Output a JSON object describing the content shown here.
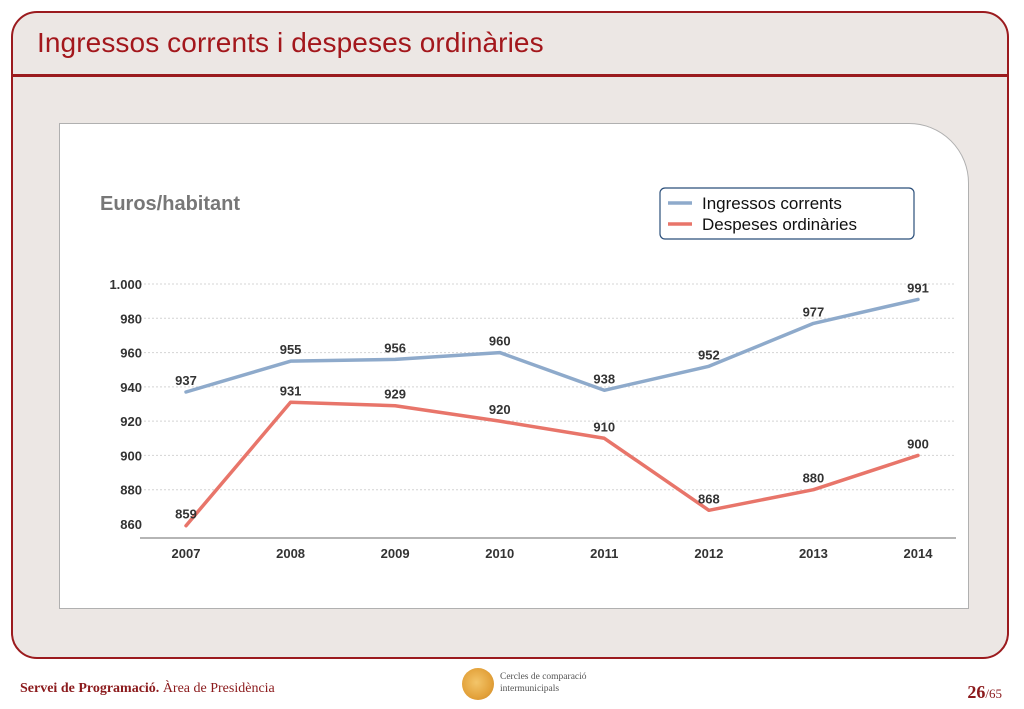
{
  "slide": {
    "title": "Ingressos corrents i despeses ordinàries",
    "footer": {
      "department": "Servei de Programació.",
      "area": "Àrea de Presidència",
      "logo_line1": "Cercles de comparació",
      "logo_line2": "intermunicipals",
      "page_current": "26",
      "page_total": "/65"
    }
  },
  "colors": {
    "title": "#a3171c",
    "frame": "#9b1b1e",
    "series_income": "#8eaacb",
    "series_expense": "#e8756a"
  },
  "chart_data": {
    "type": "line",
    "unit_label": "Euros/habitant",
    "x": [
      "2007",
      "2008",
      "2009",
      "2010",
      "2011",
      "2012",
      "2013",
      "2014"
    ],
    "ylim": [
      860,
      1000
    ],
    "y_ticks": [
      "860",
      "880",
      "900",
      "920",
      "940",
      "960",
      "980",
      "1.000"
    ],
    "grid": true,
    "legend_position": "top-right",
    "series": [
      {
        "name": "Ingressos corrents",
        "values": [
          937,
          955,
          956,
          960,
          938,
          952,
          977,
          991
        ]
      },
      {
        "name": "Despeses ordinàries",
        "values": [
          859,
          931,
          929,
          920,
          910,
          868,
          880,
          900
        ]
      }
    ]
  }
}
